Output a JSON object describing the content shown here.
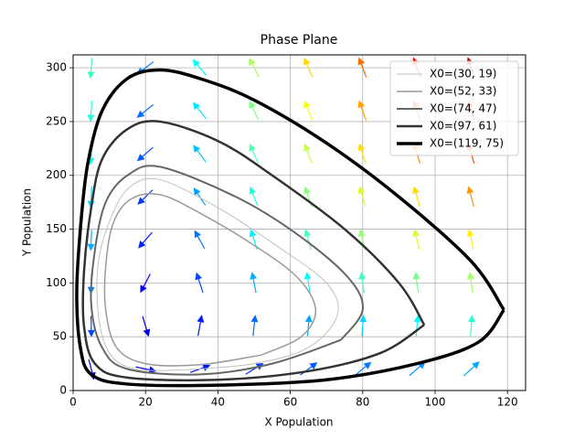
{
  "chart_data": {
    "type": "phase",
    "title": "Phase Plane",
    "x_label": "X Population",
    "y_label": "Y Population",
    "xlim": [
      0,
      125
    ],
    "ylim": [
      0,
      312
    ],
    "xticks": [
      0,
      20,
      40,
      60,
      80,
      100,
      120
    ],
    "yticks": [
      0,
      50,
      100,
      150,
      200,
      250,
      300
    ],
    "grid": true,
    "legend": "upper right",
    "quiver": {
      "x": [
        5,
        20,
        35,
        50,
        65,
        80,
        95,
        110
      ],
      "y": [
        20,
        60,
        100,
        140,
        180,
        220,
        260,
        300
      ],
      "u": [
        [
          4,
          14,
          25,
          36,
          46,
          57,
          68,
          79
        ],
        [
          1,
          3,
          5,
          7,
          9,
          11,
          14,
          16
        ],
        [
          -2,
          -9,
          -15,
          -21,
          -28,
          -34,
          -41,
          -47
        ],
        [
          -5,
          -20,
          -35,
          -50,
          -65,
          -80,
          -95,
          -110
        ],
        [
          -8,
          -31,
          -55,
          -79,
          -102,
          -126,
          -149,
          -173
        ],
        [
          -11,
          -43,
          -75,
          -107,
          -139,
          -171,
          -204,
          -236
        ],
        [
          -14,
          -54,
          -95,
          -136,
          -176,
          -217,
          -258,
          -299
        ],
        [
          -16,
          -66,
          -115,
          -164,
          -214,
          -263,
          -312,
          -361
        ]
      ],
      "v": [
        [
          -16,
          -3,
          9,
          22,
          34,
          47,
          59,
          72
        ],
        [
          -48,
          -10,
          27,
          65,
          102,
          140,
          177,
          215
        ],
        [
          -79,
          -17,
          46,
          108,
          171,
          233,
          296,
          358
        ],
        [
          -111,
          -23,
          64,
          152,
          239,
          327,
          414,
          502
        ],
        [
          -143,
          -30,
          82,
          195,
          307,
          420,
          532,
          645
        ],
        [
          -174,
          -37,
          101,
          238,
          376,
          513,
          651,
          788
        ],
        [
          -206,
          -43,
          119,
          282,
          444,
          607,
          769,
          932
        ],
        [
          -238,
          -50,
          137,
          325,
          512,
          700,
          887,
          1075
        ]
      ]
    },
    "series": [
      {
        "name": "X0=(30, 19)",
        "color": "#c0c0c0",
        "linewidth": 1,
        "x": [
          30,
          50,
          65,
          73,
          70,
          56,
          40,
          24,
          16,
          11,
          7,
          7,
          10,
          17,
          30
        ],
        "y": [
          19,
          25,
          40,
          70,
          100,
          135,
          170,
          196,
          190,
          165,
          120,
          70,
          35,
          20,
          19
        ]
      },
      {
        "name": "X0=(52, 33)",
        "color": "#999999",
        "linewidth": 1.5,
        "x": [
          52,
          63,
          67,
          62,
          50,
          35,
          24,
          16,
          11,
          9,
          9,
          12,
          20,
          35,
          52
        ],
        "y": [
          33,
          50,
          75,
          105,
          135,
          165,
          182,
          178,
          155,
          115,
          75,
          40,
          25,
          24,
          33
        ]
      },
      {
        "name": "X0=(74, 47)",
        "color": "#666666",
        "linewidth": 2,
        "x": [
          74,
          80,
          76,
          62,
          45,
          24,
          15,
          9,
          6,
          5,
          8,
          15,
          35,
          55,
          74
        ],
        "y": [
          47,
          75,
          105,
          145,
          180,
          208,
          200,
          175,
          130,
          80,
          40,
          20,
          15,
          25,
          47
        ]
      },
      {
        "name": "X0=(97, 61)",
        "color": "#333333",
        "linewidth": 2.5,
        "x": [
          97,
          90,
          75,
          55,
          40,
          24,
          15,
          8,
          5,
          3,
          3,
          6,
          15,
          40,
          65,
          85,
          97
        ],
        "y": [
          61,
          100,
          150,
          200,
          232,
          250,
          243,
          215,
          170,
          110,
          60,
          25,
          12,
          10,
          18,
          35,
          61
        ]
      },
      {
        "name": "X0=(119, 75)",
        "color": "#000000",
        "linewidth": 3.5,
        "x": [
          119,
          110,
          90,
          70,
          50,
          35,
          24,
          15,
          8,
          4,
          2,
          1,
          2,
          5,
          15,
          40,
          70,
          95,
          112,
          119
        ],
        "y": [
          75,
          120,
          180,
          230,
          270,
          290,
          298,
          290,
          260,
          210,
          150,
          90,
          40,
          15,
          6,
          5,
          10,
          25,
          45,
          75
        ]
      }
    ]
  }
}
